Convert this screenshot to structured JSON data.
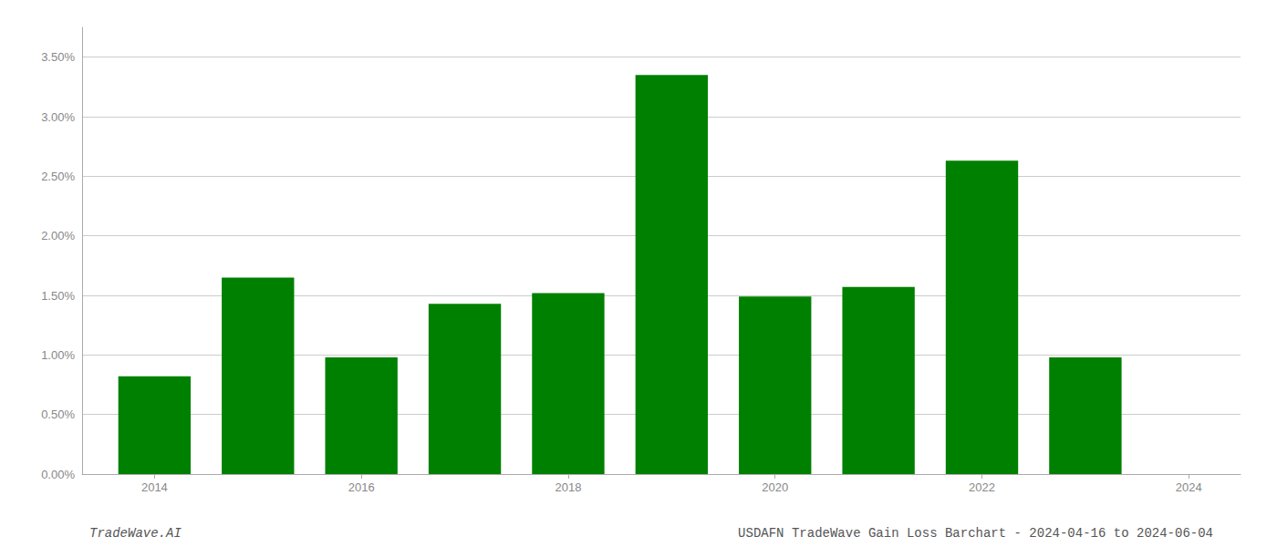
{
  "chart_data": {
    "type": "bar",
    "x": [
      2014,
      2015,
      2016,
      2017,
      2018,
      2019,
      2020,
      2021,
      2022,
      2023
    ],
    "values": [
      0.0082,
      0.0165,
      0.0098,
      0.0143,
      0.0152,
      0.0335,
      0.0149,
      0.0157,
      0.0263,
      0.0098
    ],
    "color": "#008000",
    "xlim": [
      2013.3,
      2024.5
    ],
    "xticks": [
      2014,
      2016,
      2018,
      2020,
      2022,
      2024
    ],
    "ylim": [
      0,
      0.0375
    ],
    "yticks": [
      {
        "value": 0.0,
        "label": "0.00%"
      },
      {
        "value": 0.005,
        "label": "0.50%"
      },
      {
        "value": 0.01,
        "label": "1.00%"
      },
      {
        "value": 0.015,
        "label": "1.50%"
      },
      {
        "value": 0.02,
        "label": "2.00%"
      },
      {
        "value": 0.025,
        "label": "2.50%"
      },
      {
        "value": 0.03,
        "label": "3.00%"
      },
      {
        "value": 0.035,
        "label": "3.50%"
      }
    ],
    "grid": true,
    "annotations": [
      "TradeWave.AI",
      "USDAFN TradeWave Gain Loss Barchart - 2024-04-16 to 2024-06-04"
    ]
  }
}
